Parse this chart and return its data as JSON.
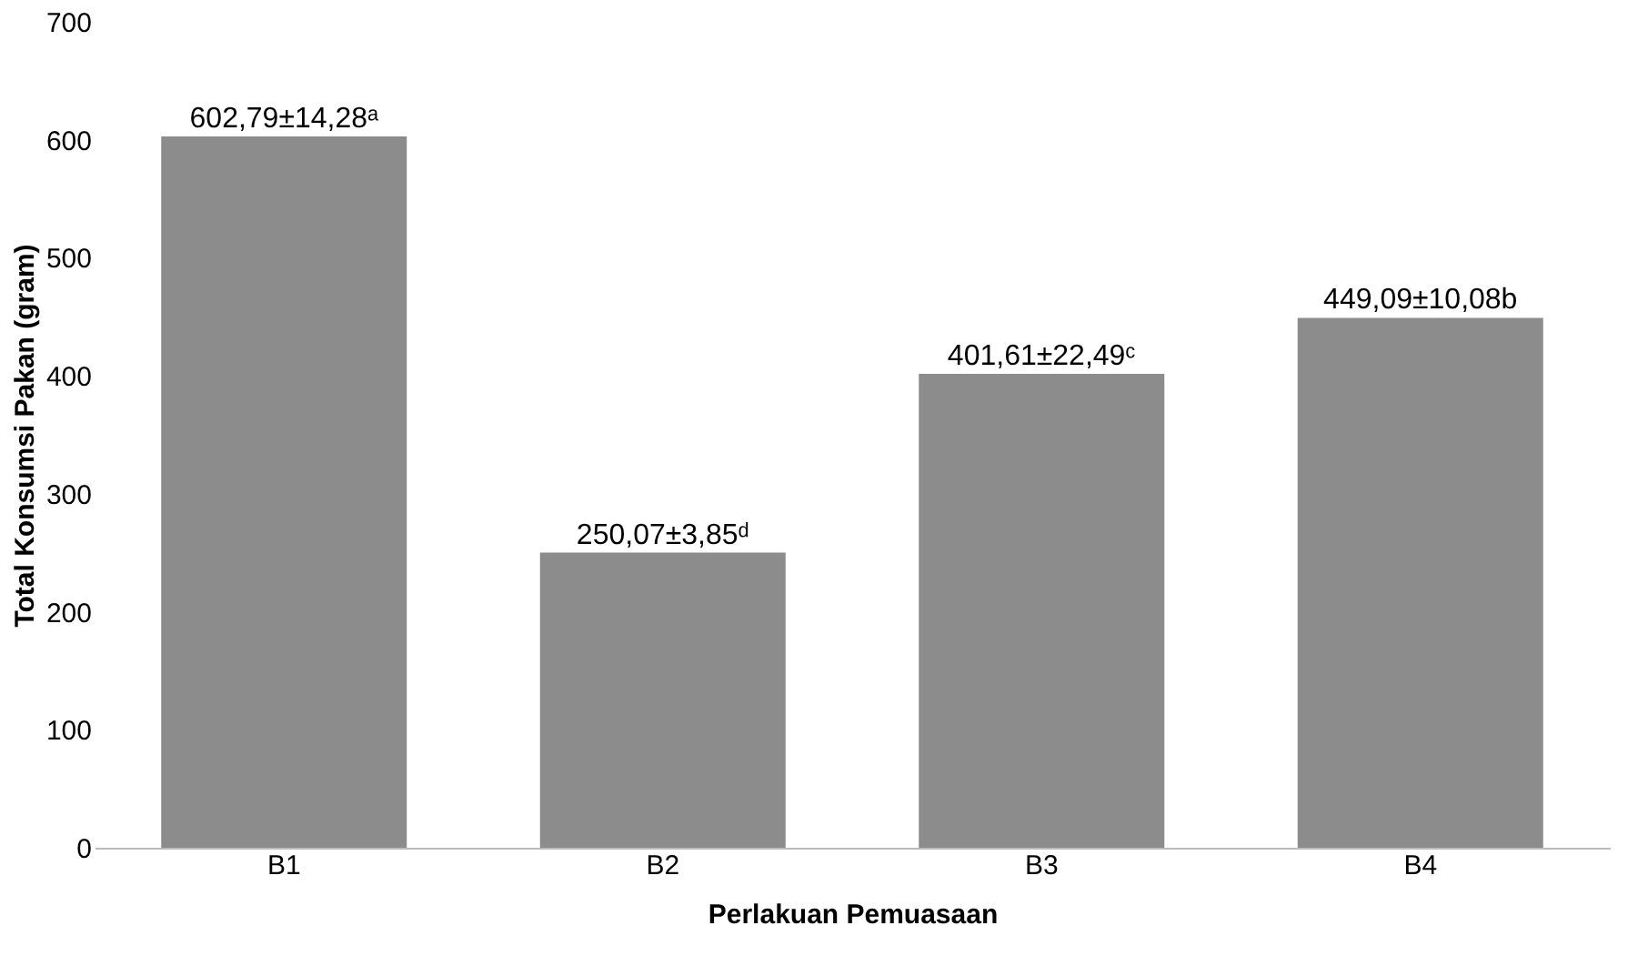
{
  "chart_data": {
    "type": "bar",
    "xlabel": "Perlakuan Pemuasaan",
    "ylabel": "Total Konsumsi Pakan (gram)",
    "categories": [
      "B1",
      "B2",
      "B3",
      "B4"
    ],
    "values": [
      602.79,
      250.07,
      401.61,
      449.09
    ],
    "value_labels": [
      "602,79±14,28ᵃ",
      "250,07±3,85ᵈ",
      "401,61±22,49ᶜ",
      "449,09±10,08b"
    ],
    "color": "#8c8c8c",
    "ylim": [
      0,
      700
    ],
    "yticks": [
      0,
      100,
      200,
      300,
      400,
      500,
      600,
      700
    ],
    "grid": false
  }
}
